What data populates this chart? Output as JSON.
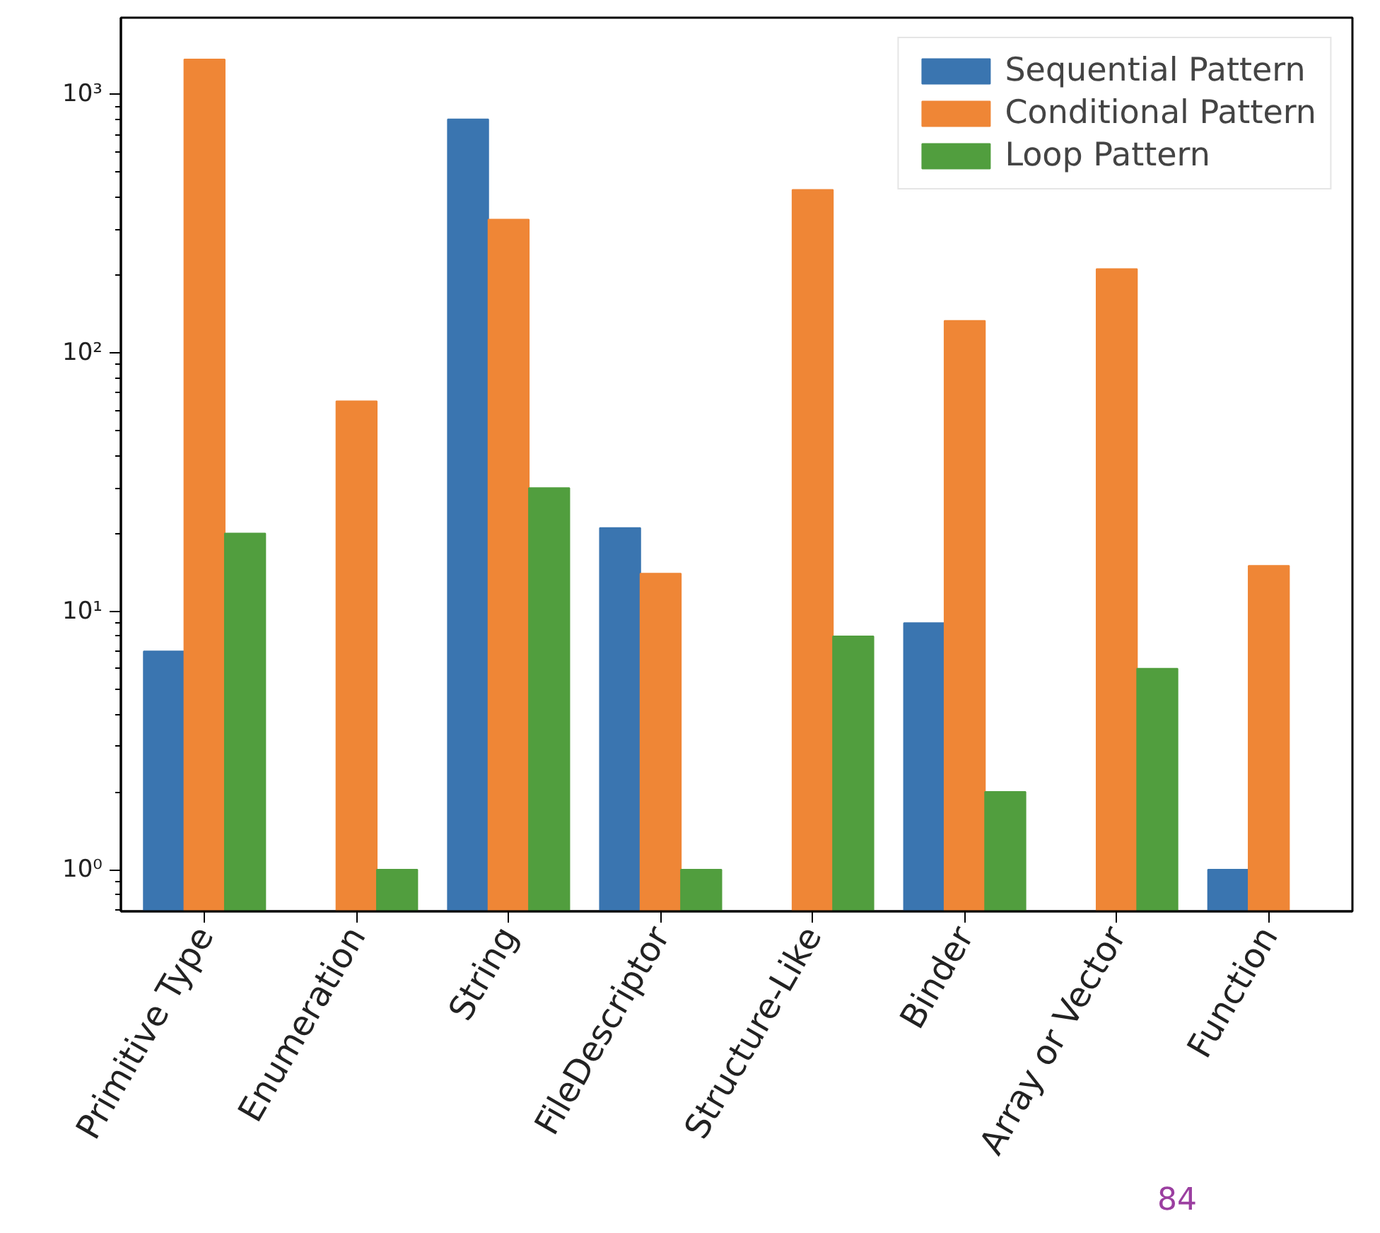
{
  "chart_data": {
    "type": "bar",
    "categories": [
      "Primitive Type",
      "Enumeration",
      "String",
      "FileDescriptor",
      "Structure-Like",
      "Binder",
      "Array or Vector",
      "Function"
    ],
    "series": [
      {
        "name": "Sequential Pattern",
        "color": "#3a75b0",
        "values": [
          7,
          null,
          800,
          21,
          null,
          9,
          null,
          1
        ]
      },
      {
        "name": "Conditional Pattern",
        "color": "#ef8636",
        "values": [
          1365,
          65,
          328,
          14,
          427,
          133,
          211,
          15
        ]
      },
      {
        "name": "Loop Pattern",
        "color": "#519e3e",
        "values": [
          20,
          1,
          30,
          1,
          8,
          2,
          6,
          null
        ]
      }
    ],
    "log": "y",
    "ylim": [
      0.69,
      1980
    ],
    "yticks": [
      {
        "value": 1,
        "label": "10⁰"
      },
      {
        "value": 10,
        "label": "10¹"
      },
      {
        "value": 100,
        "label": "10²"
      },
      {
        "value": 1000,
        "label": "10³"
      }
    ],
    "grid": false,
    "legend": "top right",
    "annotations": [
      "84"
    ]
  }
}
